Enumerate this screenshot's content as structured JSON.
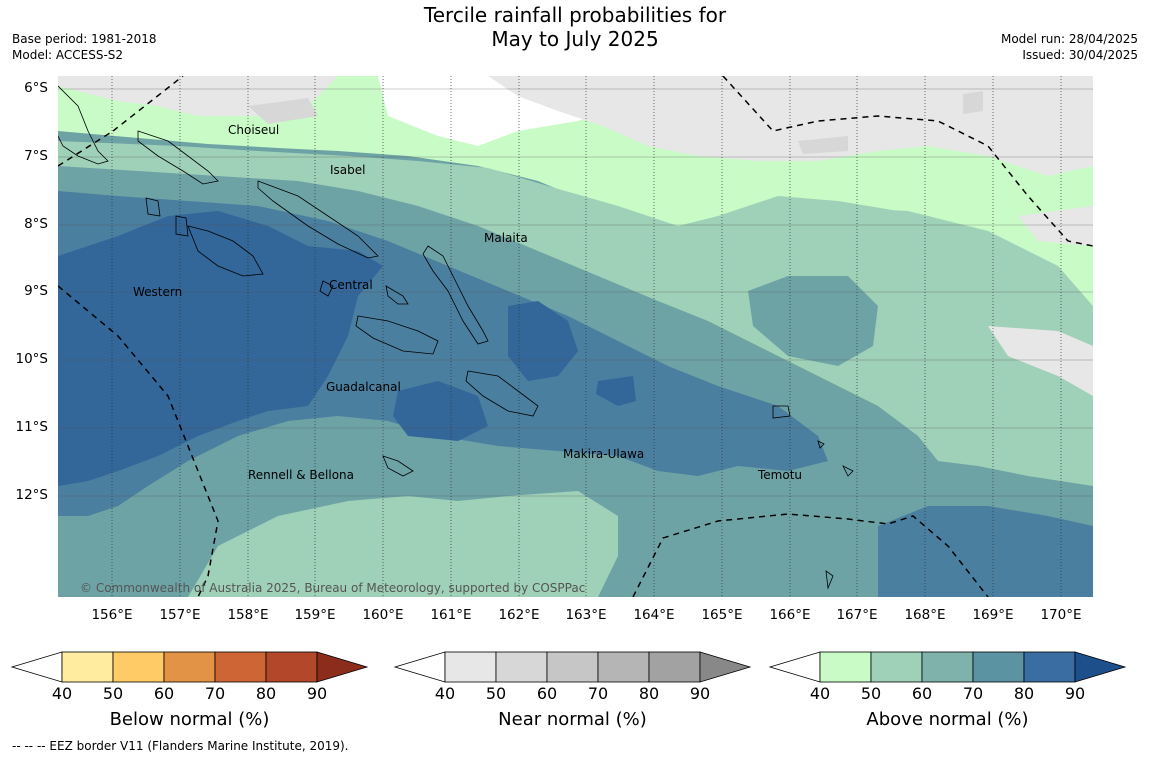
{
  "header": {
    "title_line1": "Tercile rainfall probabilities for",
    "title_line2": "May to July 2025",
    "base_period": "Base period: 1981-2018",
    "model": "Model: ACCESS-S2",
    "model_run": "Model run: 28/04/2025",
    "issued": "Issued: 30/04/2025"
  },
  "map": {
    "lat_ticks": [
      "6°S",
      "7°S",
      "8°S",
      "9°S",
      "10°S",
      "11°S",
      "12°S"
    ],
    "lon_ticks": [
      "156°E",
      "157°E",
      "158°E",
      "159°E",
      "160°E",
      "161°E",
      "162°E",
      "163°E",
      "164°E",
      "165°E",
      "166°E",
      "167°E",
      "168°E",
      "169°E",
      "170°E"
    ],
    "region_labels": [
      "Choiseul",
      "Isabel",
      "Malaita",
      "Western",
      "Central",
      "Guadalcanal",
      "Makira-Ulawa",
      "Rennell & Bellona",
      "Temotu"
    ],
    "copyright": "© Commonwealth of Australia 2025, Bureau of Meteorology, supported by COSPPac"
  },
  "colorbars": [
    {
      "title": "Below normal (%)",
      "ticks": [
        "40",
        "50",
        "60",
        "70",
        "80",
        "90"
      ],
      "colors": [
        "#ffffff",
        "#ffec9e",
        "#ffcb66",
        "#e29345",
        "#cd6534",
        "#b2472a",
        "#8c2d1c"
      ]
    },
    {
      "title": "Near normal (%)",
      "ticks": [
        "40",
        "50",
        "60",
        "70",
        "80",
        "90"
      ],
      "colors": [
        "#ffffff",
        "#e7e7e7",
        "#d7d7d7",
        "#c6c6c6",
        "#b5b5b5",
        "#a2a2a2",
        "#888888"
      ]
    },
    {
      "title": "Above normal (%)",
      "ticks": [
        "40",
        "50",
        "60",
        "70",
        "80",
        "90"
      ],
      "colors": [
        "#ffffff",
        "#c9fbc7",
        "#9fd0b8",
        "#80b2ac",
        "#5c93a3",
        "#3a6ea3",
        "#1d4f8a"
      ]
    }
  ],
  "footer": {
    "eez_note": "--  --  -- EEZ border V11 (Flanders Marine Institute, 2019)."
  }
}
